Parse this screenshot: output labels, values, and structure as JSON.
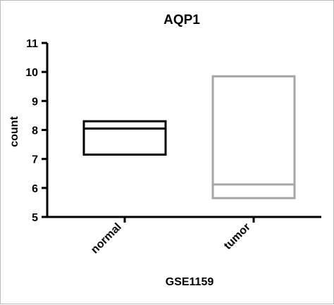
{
  "chart_data": {
    "type": "box",
    "title": "AQP1",
    "xlabel": "GSE1159",
    "ylabel": "count",
    "ylim": [
      5,
      11
    ],
    "yticks": [
      "5",
      "6",
      "7",
      "8",
      "9",
      "10",
      "11"
    ],
    "categories": [
      "normal",
      "tumor"
    ],
    "series": [
      {
        "category": "normal",
        "q1": 7.15,
        "median": 8.05,
        "q3": 8.3,
        "color": "#000000"
      },
      {
        "category": "tumor",
        "q1": 5.65,
        "median": 6.12,
        "q3": 9.85,
        "color": "#a6a6a6"
      }
    ],
    "grid": false,
    "legend": "none"
  }
}
